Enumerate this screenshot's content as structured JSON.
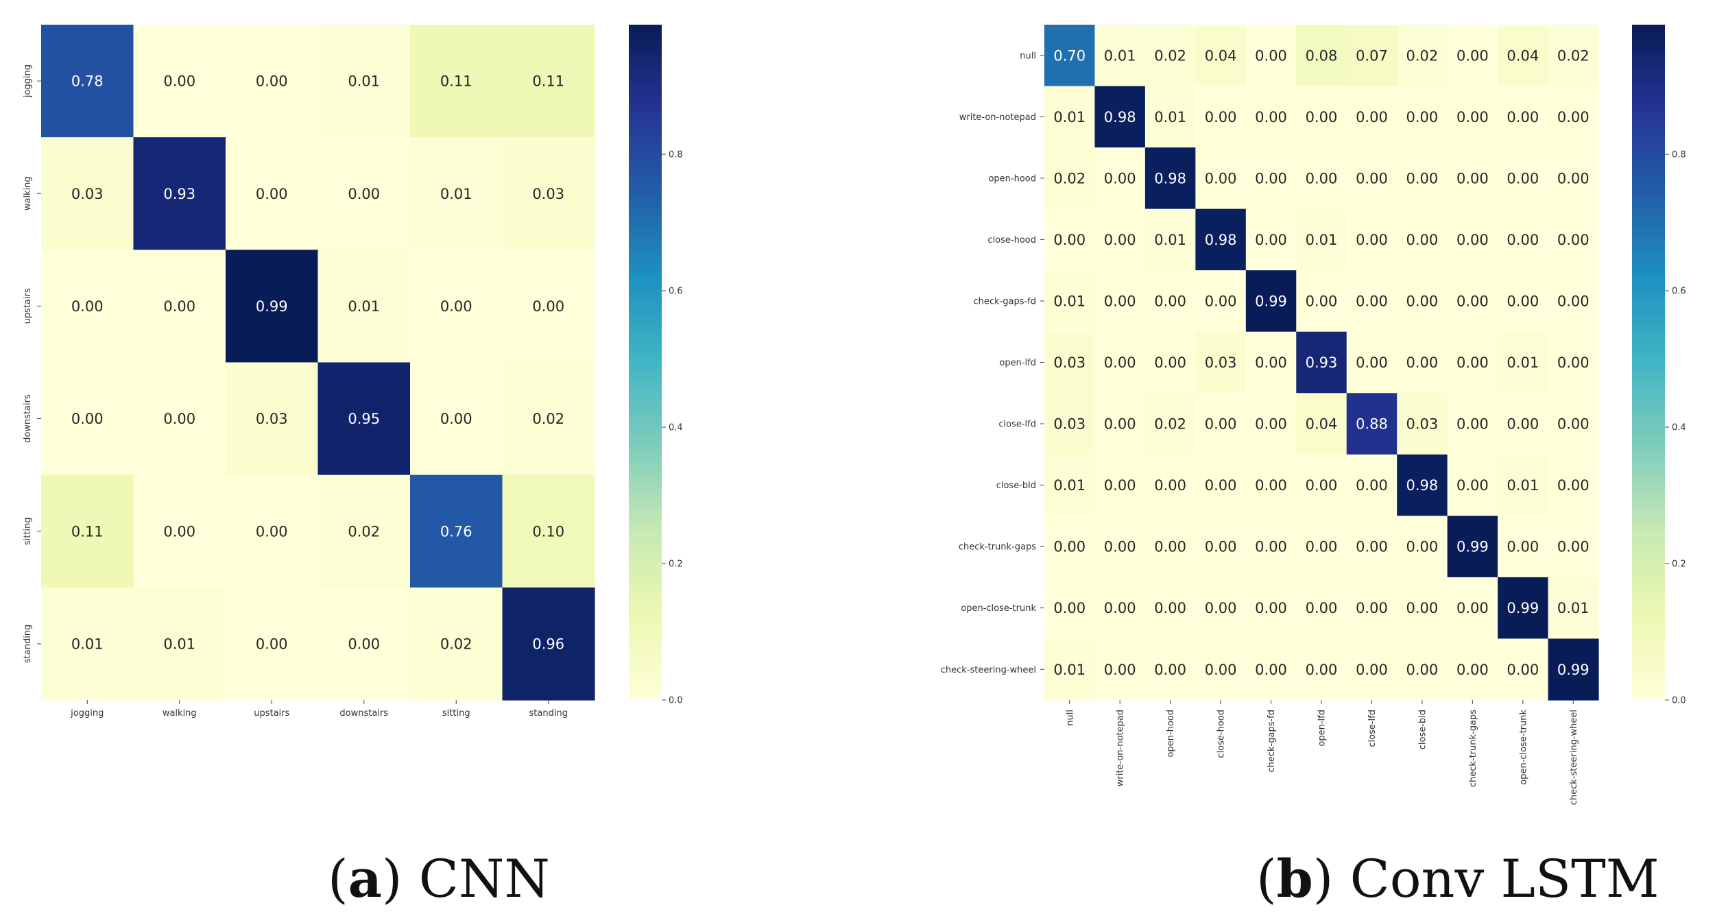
{
  "panels": [
    {
      "id": "a",
      "caption_letter": "a",
      "caption_text": "CNN",
      "chart_data": {
        "type": "heatmap",
        "title": "CNN",
        "xlabel": "",
        "ylabel": "",
        "row_labels": [
          "jogging",
          "walking",
          "upstairs",
          "downstairs",
          "sitting",
          "standing"
        ],
        "col_labels": [
          "jogging",
          "walking",
          "upstairs",
          "downstairs",
          "sitting",
          "standing"
        ],
        "values": [
          [
            0.78,
            0.0,
            0.0,
            0.01,
            0.11,
            0.11
          ],
          [
            0.03,
            0.93,
            0.0,
            0.0,
            0.01,
            0.03
          ],
          [
            0.0,
            0.0,
            0.99,
            0.01,
            0.0,
            0.0
          ],
          [
            0.0,
            0.0,
            0.03,
            0.95,
            0.0,
            0.02
          ],
          [
            0.11,
            0.0,
            0.0,
            0.02,
            0.76,
            0.1
          ],
          [
            0.01,
            0.01,
            0.0,
            0.0,
            0.02,
            0.96
          ]
        ],
        "colormap": "YlGnBu",
        "colorbar_range": [
          0,
          0.99
        ],
        "colorbar_ticks": [
          "0.0",
          "0.2",
          "0.4",
          "0.6",
          "0.8"
        ]
      }
    },
    {
      "id": "b",
      "caption_letter": "b",
      "caption_text": "Conv LSTM",
      "chart_data": {
        "type": "heatmap",
        "title": "Conv LSTM",
        "xlabel": "",
        "ylabel": "",
        "row_labels": [
          "null",
          "write-on-notepad",
          "open-hood",
          "close-hood",
          "check-gaps-fd",
          "open-lfd",
          "close-lfd",
          "close-bld",
          "check-trunk-gaps",
          "open-close-trunk",
          "check-steering-wheel"
        ],
        "col_labels": [
          "null",
          "write-on-notepad",
          "open-hood",
          "close-hood",
          "check-gaps-fd",
          "open-lfd",
          "close-lfd",
          "close-bld",
          "check-trunk-gaps",
          "open-close-trunk",
          "check-steering-wheel"
        ],
        "values": [
          [
            0.7,
            0.01,
            0.02,
            0.04,
            0.0,
            0.08,
            0.07,
            0.02,
            0.0,
            0.04,
            0.02
          ],
          [
            0.01,
            0.98,
            0.01,
            0.0,
            0.0,
            0.0,
            0.0,
            0.0,
            0.0,
            0.0,
            0.0
          ],
          [
            0.02,
            0.0,
            0.98,
            0.0,
            0.0,
            0.0,
            0.0,
            0.0,
            0.0,
            0.0,
            0.0
          ],
          [
            0.0,
            0.0,
            0.01,
            0.98,
            0.0,
            0.01,
            0.0,
            0.0,
            0.0,
            0.0,
            0.0
          ],
          [
            0.01,
            0.0,
            0.0,
            0.0,
            0.99,
            0.0,
            0.0,
            0.0,
            0.0,
            0.0,
            0.0
          ],
          [
            0.03,
            0.0,
            0.0,
            0.03,
            0.0,
            0.93,
            0.0,
            0.0,
            0.0,
            0.01,
            0.0
          ],
          [
            0.03,
            0.0,
            0.02,
            0.0,
            0.0,
            0.04,
            0.88,
            0.03,
            0.0,
            0.0,
            0.0
          ],
          [
            0.01,
            0.0,
            0.0,
            0.0,
            0.0,
            0.0,
            0.0,
            0.98,
            0.0,
            0.01,
            0.0
          ],
          [
            0.0,
            0.0,
            0.0,
            0.0,
            0.0,
            0.0,
            0.0,
            0.0,
            0.99,
            0.0,
            0.0
          ],
          [
            0.0,
            0.0,
            0.0,
            0.0,
            0.0,
            0.0,
            0.0,
            0.0,
            0.0,
            0.99,
            0.01
          ],
          [
            0.01,
            0.0,
            0.0,
            0.0,
            0.0,
            0.0,
            0.0,
            0.0,
            0.0,
            0.0,
            0.99
          ]
        ],
        "colormap": "YlGnBu",
        "colorbar_range": [
          0,
          0.99
        ],
        "colorbar_ticks": [
          "0.0",
          "0.2",
          "0.4",
          "0.6",
          "0.8"
        ]
      }
    }
  ],
  "colormap_stops": [
    "#ffffd9",
    "#edf8b1",
    "#c7e9b4",
    "#7fcdbb",
    "#41b6c4",
    "#1d91c0",
    "#225ea8",
    "#253494",
    "#081d58"
  ]
}
